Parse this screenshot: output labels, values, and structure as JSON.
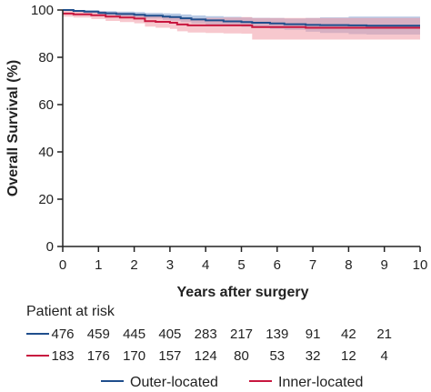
{
  "chart_data": {
    "type": "line",
    "title": "",
    "xlabel": "Years after surgery",
    "ylabel": "Overall Survival (%)",
    "xlim": [
      0,
      10
    ],
    "ylim": [
      0,
      100
    ],
    "x_ticks": [
      0,
      1,
      2,
      3,
      4,
      5,
      6,
      7,
      8,
      9,
      10
    ],
    "y_ticks": [
      0,
      20,
      40,
      60,
      80,
      100
    ],
    "grid": false,
    "legend_position": "bottom",
    "series": [
      {
        "name": "Outer-located",
        "color": "#1f4e8c",
        "band_color": "#7e9fcf",
        "x": [
          0,
          0.3,
          0.6,
          1.0,
          1.2,
          1.5,
          2.0,
          2.3,
          2.8,
          3.0,
          3.3,
          3.6,
          4.0,
          4.5,
          5.0,
          5.3,
          5.8,
          6.2,
          6.8,
          7.2,
          8.0,
          8.5,
          9.0,
          9.5
        ],
        "y": [
          100,
          99.6,
          99.3,
          98.8,
          98.6,
          98.3,
          98.0,
          97.6,
          97.2,
          97.0,
          96.5,
          96.0,
          95.6,
          95.2,
          94.9,
          94.6,
          94.3,
          94.0,
          93.7,
          93.6,
          93.5,
          93.4,
          93.4,
          93.4
        ],
        "ci_lower": [
          100,
          99.2,
          98.7,
          98.0,
          97.7,
          97.3,
          96.9,
          96.4,
          95.8,
          95.5,
          94.9,
          94.3,
          93.8,
          93.3,
          92.9,
          92.5,
          92.0,
          91.6,
          90.8,
          90.3,
          89.8,
          89.6,
          89.6,
          89.6
        ],
        "ci_upper": [
          100,
          100,
          99.9,
          99.6,
          99.5,
          99.3,
          99.1,
          98.8,
          98.6,
          98.5,
          98.1,
          97.7,
          97.4,
          97.1,
          96.9,
          96.7,
          96.6,
          96.4,
          96.6,
          96.9,
          97.2,
          97.2,
          97.2,
          97.2
        ]
      },
      {
        "name": "Inner-located",
        "color": "#c8173f",
        "band_color": "#f09aa6",
        "x": [
          0,
          0.3,
          0.8,
          1.2,
          1.6,
          2.0,
          2.3,
          2.6,
          3.0,
          3.2,
          3.5,
          4.0,
          4.5,
          5.0,
          5.3,
          6.0,
          6.8,
          8.0,
          9.0,
          9.5
        ],
        "y": [
          98.5,
          98.2,
          97.8,
          97.2,
          96.8,
          96.4,
          95.3,
          95.0,
          94.6,
          93.9,
          93.5,
          93.5,
          93.5,
          93.5,
          92.8,
          92.8,
          92.5,
          92.5,
          92.5,
          92.5
        ],
        "ci_lower": [
          97.2,
          96.8,
          96.2,
          95.4,
          94.9,
          94.4,
          93.0,
          92.5,
          92.0,
          91.0,
          90.5,
          90.3,
          90.1,
          90.0,
          87.5,
          87.5,
          87.5,
          87.5,
          87.5,
          87.5
        ],
        "ci_upper": [
          99.8,
          99.6,
          99.4,
          99.0,
          98.7,
          98.4,
          97.6,
          97.5,
          97.2,
          96.8,
          96.5,
          96.7,
          96.9,
          97.0,
          96.6,
          96.6,
          96.6,
          96.6,
          96.6,
          96.6
        ]
      }
    ],
    "risk_table": {
      "title": "Patient at risk",
      "times": [
        0,
        1,
        2,
        3,
        4,
        5,
        6,
        7,
        8,
        9
      ],
      "rows": [
        {
          "series": "Outer-located",
          "color": "#1f4e8c",
          "values": [
            476,
            459,
            445,
            405,
            283,
            217,
            139,
            91,
            42,
            21
          ]
        },
        {
          "series": "Inner-located",
          "color": "#c8173f",
          "values": [
            183,
            176,
            170,
            157,
            124,
            80,
            53,
            32,
            12,
            4
          ]
        }
      ]
    }
  }
}
